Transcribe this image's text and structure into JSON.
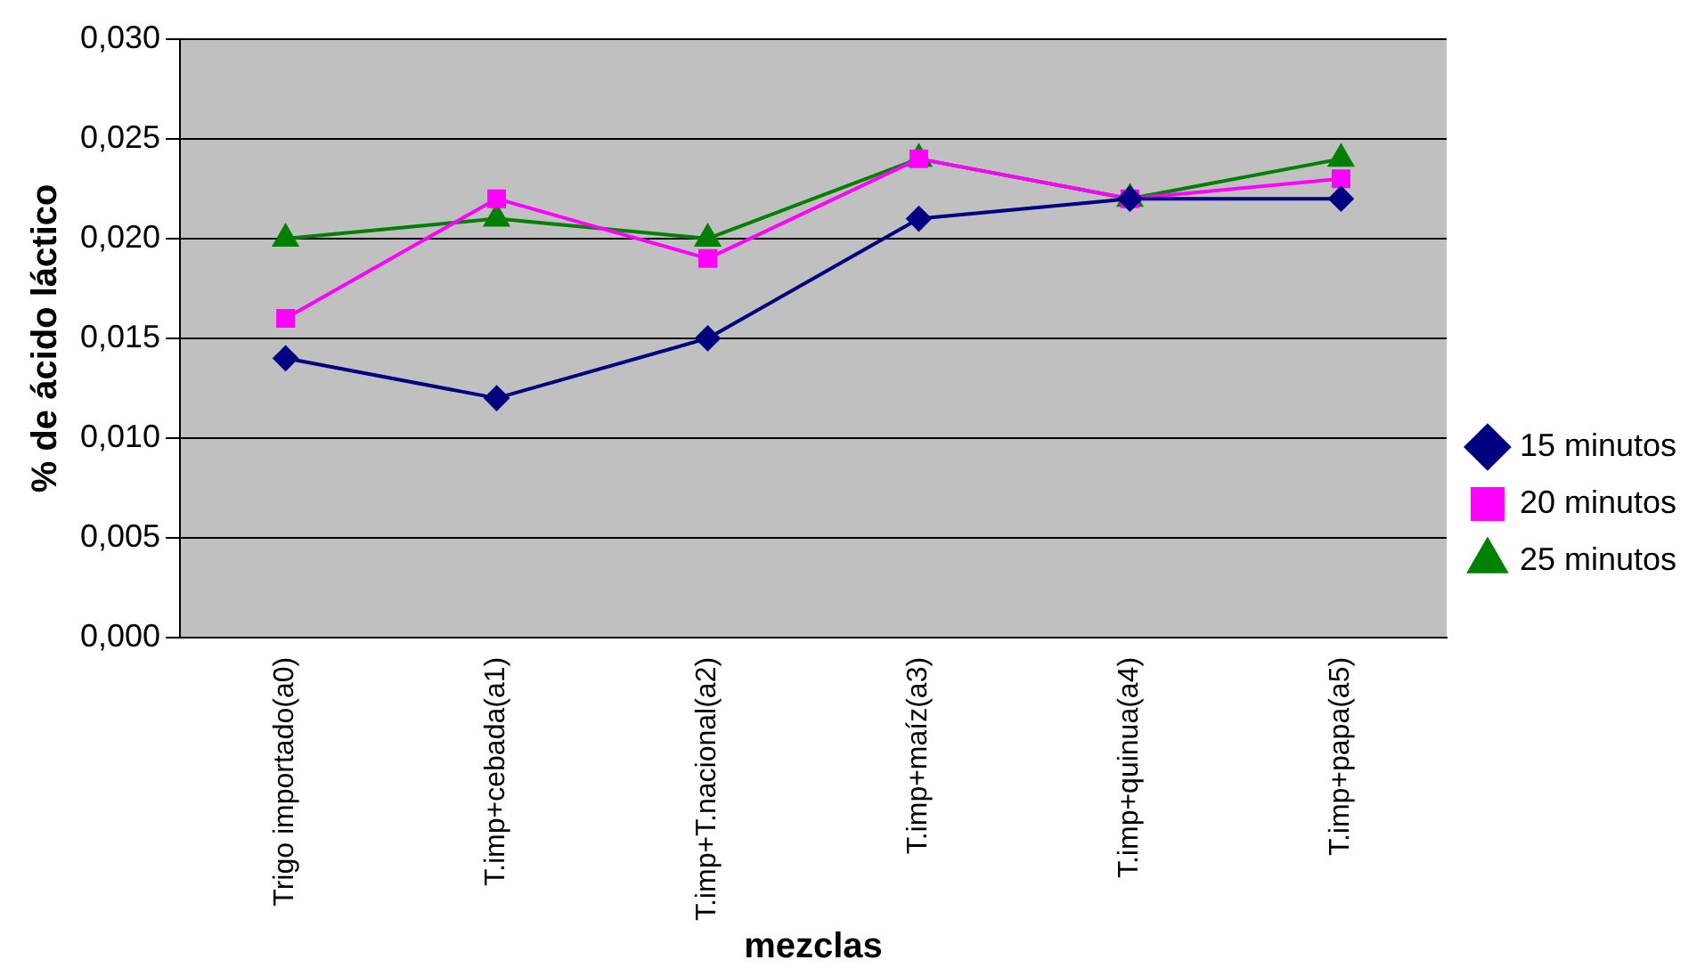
{
  "chart_data": {
    "type": "line",
    "xlabel": "mezclas",
    "ylabel": "% de ácido láctico",
    "categories": [
      "Trigo importado(a0)",
      "T.imp+cebada(a1)",
      "T.imp+T.nacional(a2)",
      "T.imp+maíz(a3)",
      "T.imp+quinua(a4)",
      "T.imp+papa(a5)"
    ],
    "series": [
      {
        "name": "15 minutos",
        "color": "#000080",
        "marker": "diamond",
        "values": [
          0.014,
          0.012,
          0.015,
          0.021,
          0.022,
          0.022
        ]
      },
      {
        "name": "20 minutos",
        "color": "#ff00ff",
        "marker": "square",
        "values": [
          0.016,
          0.022,
          0.019,
          0.024,
          0.022,
          0.023
        ]
      },
      {
        "name": "25 minutos",
        "color": "#008000",
        "marker": "triangle",
        "values": [
          0.02,
          0.021,
          0.02,
          0.024,
          0.022,
          0.024
        ]
      }
    ],
    "ylim": [
      0,
      0.03
    ],
    "yticks": [
      {
        "value": 0,
        "label": "0,000"
      },
      {
        "value": 0.005,
        "label": "0,005"
      },
      {
        "value": 0.01,
        "label": "0,010"
      },
      {
        "value": 0.015,
        "label": "0,015"
      },
      {
        "value": 0.02,
        "label": "0,020"
      },
      {
        "value": 0.025,
        "label": "0,025"
      },
      {
        "value": 0.03,
        "label": "0,030"
      }
    ],
    "grid": "y",
    "legend": "right",
    "line_style": "solid"
  }
}
